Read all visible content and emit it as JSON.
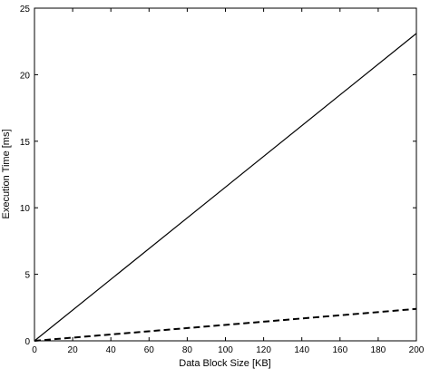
{
  "chart_data": {
    "type": "line",
    "title": "",
    "xlabel": "Data Block Size [KB]",
    "ylabel": "Execution Time [ms]",
    "xlim": [
      0,
      200
    ],
    "ylim": [
      0,
      25
    ],
    "x_ticks": [
      0,
      20,
      40,
      60,
      80,
      100,
      120,
      140,
      160,
      180,
      200
    ],
    "y_ticks": [
      0,
      5,
      10,
      15,
      20,
      25
    ],
    "grid": false,
    "legend": "none",
    "series": [
      {
        "style": "solid",
        "color": "#000000",
        "x": [
          0,
          200
        ],
        "y": [
          0,
          23.1
        ]
      },
      {
        "style": "dashed",
        "color": "#000000",
        "x": [
          0,
          200
        ],
        "y": [
          0,
          2.4
        ]
      }
    ]
  }
}
